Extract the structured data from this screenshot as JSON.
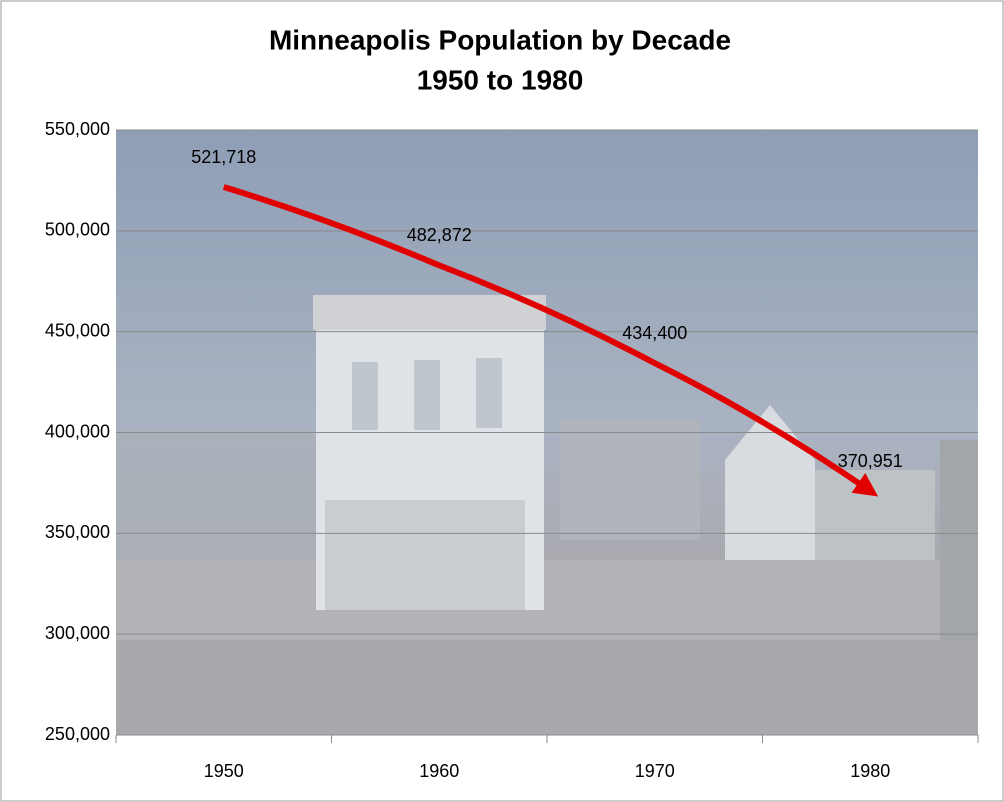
{
  "chart_data": {
    "type": "line",
    "title": "Minneapolis Population by Decade",
    "subtitle": "1950 to 1980",
    "categories": [
      "1950",
      "1960",
      "1970",
      "1980"
    ],
    "values": [
      521718,
      482872,
      434400,
      370951
    ],
    "value_labels": [
      "521,718",
      "482,872",
      "434,400",
      "370,951"
    ],
    "color": "#e00000",
    "ylim": [
      250000,
      550000
    ],
    "yticks": [
      {
        "value": 250000,
        "label": "250,000"
      },
      {
        "value": 300000,
        "label": "300,000"
      },
      {
        "value": 350000,
        "label": "350,000"
      },
      {
        "value": 400000,
        "label": "400,000"
      },
      {
        "value": 450000,
        "label": "450,000"
      },
      {
        "value": 500000,
        "label": "500,000"
      },
      {
        "value": 550000,
        "label": "550,000"
      }
    ],
    "grid": true
  }
}
